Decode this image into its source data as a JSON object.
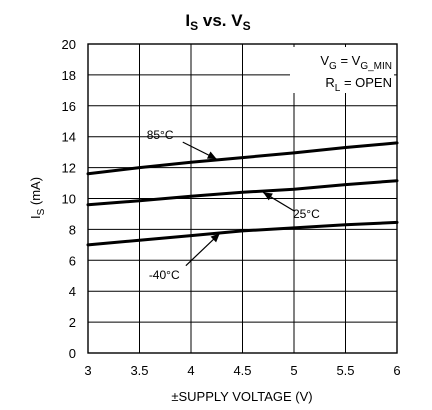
{
  "chart_data": {
    "type": "line",
    "title": {
      "main": "I",
      "main_sub": "S",
      "mid": " vs. V",
      "mid_sub": "S"
    },
    "xlabel": "±SUPPLY VOLTAGE (V)",
    "ylabel": {
      "main": "I",
      "sub": "S",
      "rest": " (mA)"
    },
    "xlim": [
      3,
      6
    ],
    "ylim": [
      0,
      20
    ],
    "xticks": [
      "3",
      "3.5",
      "4",
      "4.5",
      "5",
      "5.5",
      "6"
    ],
    "yticks": [
      "0",
      "2",
      "4",
      "6",
      "8",
      "10",
      "12",
      "14",
      "16",
      "18",
      "20"
    ],
    "grid": true,
    "conditions": [
      {
        "a": "V",
        "a_sub": "G",
        "b": " = V",
        "b_sub": "G_MIN"
      },
      {
        "a": "R",
        "a_sub": "L",
        "b": " = OPEN",
        "b_sub": ""
      }
    ],
    "series": [
      {
        "name": "85°C",
        "x": [
          3,
          3.5,
          4,
          4.5,
          5,
          5.5,
          6
        ],
        "y": [
          11.6,
          12.0,
          12.35,
          12.65,
          12.95,
          13.3,
          13.6
        ]
      },
      {
        "name": "25°C",
        "x": [
          3,
          3.5,
          4,
          4.5,
          5,
          5.5,
          6
        ],
        "y": [
          9.6,
          9.85,
          10.15,
          10.4,
          10.6,
          10.9,
          11.15
        ]
      },
      {
        "name": "-40°C",
        "x": [
          3,
          3.5,
          4,
          4.5,
          5,
          5.5,
          6
        ],
        "y": [
          7.0,
          7.3,
          7.6,
          7.9,
          8.1,
          8.3,
          8.45
        ]
      }
    ],
    "annotations": [
      {
        "series": "85°C",
        "text": "85°C",
        "label_at": [
          3.7,
          14.1
        ],
        "arrow_from": [
          3.92,
          13.65
        ],
        "arrow_to": [
          4.25,
          12.55
        ]
      },
      {
        "series": "25°C",
        "text": "25°C",
        "label_at": [
          5.12,
          9.0
        ],
        "arrow_from": [
          5.0,
          9.2
        ],
        "arrow_to": [
          4.7,
          10.4
        ]
      },
      {
        "series": "-40°C",
        "text": "-40°C",
        "label_at": [
          3.74,
          5.05
        ],
        "arrow_from": [
          3.95,
          5.65
        ],
        "arrow_to": [
          4.28,
          7.75
        ]
      }
    ]
  }
}
